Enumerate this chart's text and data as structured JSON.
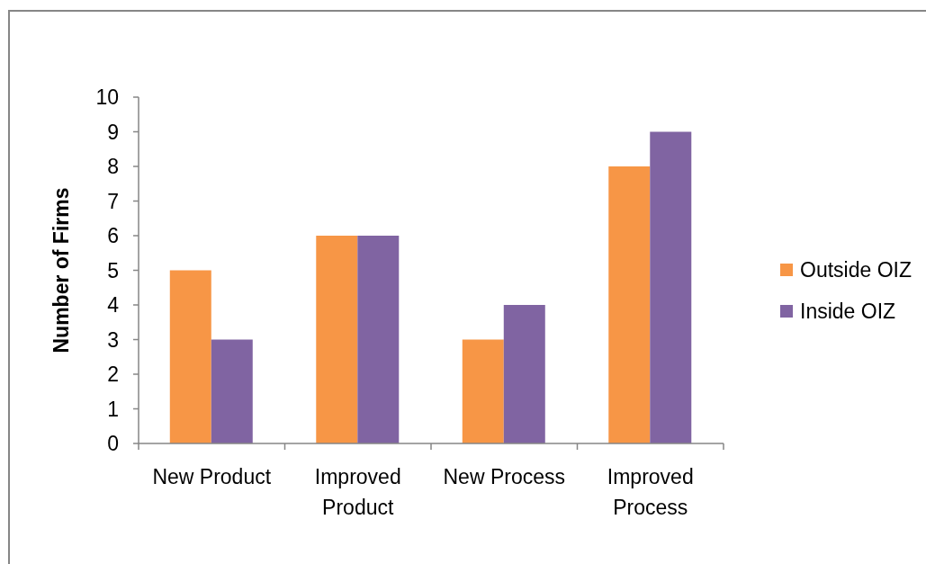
{
  "chart_data": {
    "type": "bar",
    "ylabel": "Number of Firms",
    "categories": [
      "New Product",
      "Improved Product",
      "New Process",
      "Improved Process"
    ],
    "series": [
      {
        "name": "Outside OIZ",
        "color": "#f79646",
        "values": [
          5,
          6,
          3,
          8
        ]
      },
      {
        "name": "Inside OIZ",
        "color": "#8064a2",
        "values": [
          3,
          6,
          4,
          9
        ]
      }
    ],
    "ylim": [
      0,
      10
    ],
    "yticks": [
      0,
      1,
      2,
      3,
      4,
      5,
      6,
      7,
      8,
      9,
      10
    ],
    "legend": "right"
  }
}
